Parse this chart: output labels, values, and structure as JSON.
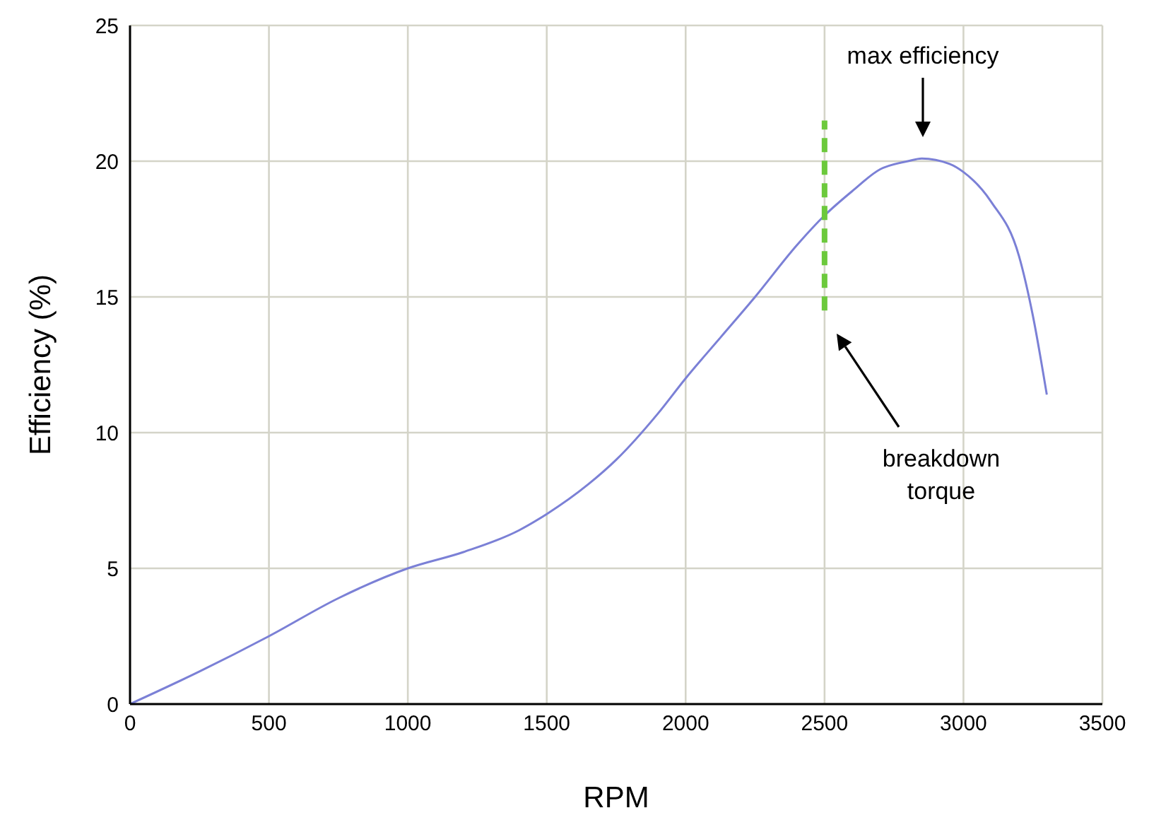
{
  "chart_data": {
    "type": "line",
    "xlabel": "RPM",
    "ylabel": "Efficiency (%)",
    "xlim": [
      0,
      3500
    ],
    "xticks": [
      0,
      500,
      1000,
      1500,
      2000,
      2500,
      3000,
      3500
    ],
    "ylim": [
      0,
      25
    ],
    "yticks": [
      0,
      5,
      10,
      15,
      20,
      25
    ],
    "grid": true,
    "marker": "none",
    "series": [
      {
        "color": "#7b80d6",
        "x": [
          0,
          250,
          500,
          750,
          1000,
          1200,
          1400,
          1500,
          1650,
          1750,
          1900,
          2000,
          2125,
          2250,
          2400,
          2500,
          2600,
          2700,
          2800,
          2850,
          2950,
          3000,
          3100,
          3200,
          3250,
          3300
        ],
        "values": [
          0,
          1.2,
          2.5,
          3.9,
          5.0,
          5.6,
          6.4,
          7.0,
          8.1,
          9.0,
          10.7,
          12.0,
          13.5,
          15.0,
          16.9,
          18.0,
          18.9,
          19.7,
          20.0,
          20.1,
          19.9,
          19.6,
          18.5,
          16.5,
          14.3,
          11.4
        ]
      },
      {
        "color": "#6cc93c",
        "line_style": "dashed",
        "x": [
          2500,
          2500
        ],
        "values": [
          14.5,
          21.5
        ]
      }
    ],
    "annotations": [
      "max efficiency",
      "breakdown torque"
    ]
  }
}
